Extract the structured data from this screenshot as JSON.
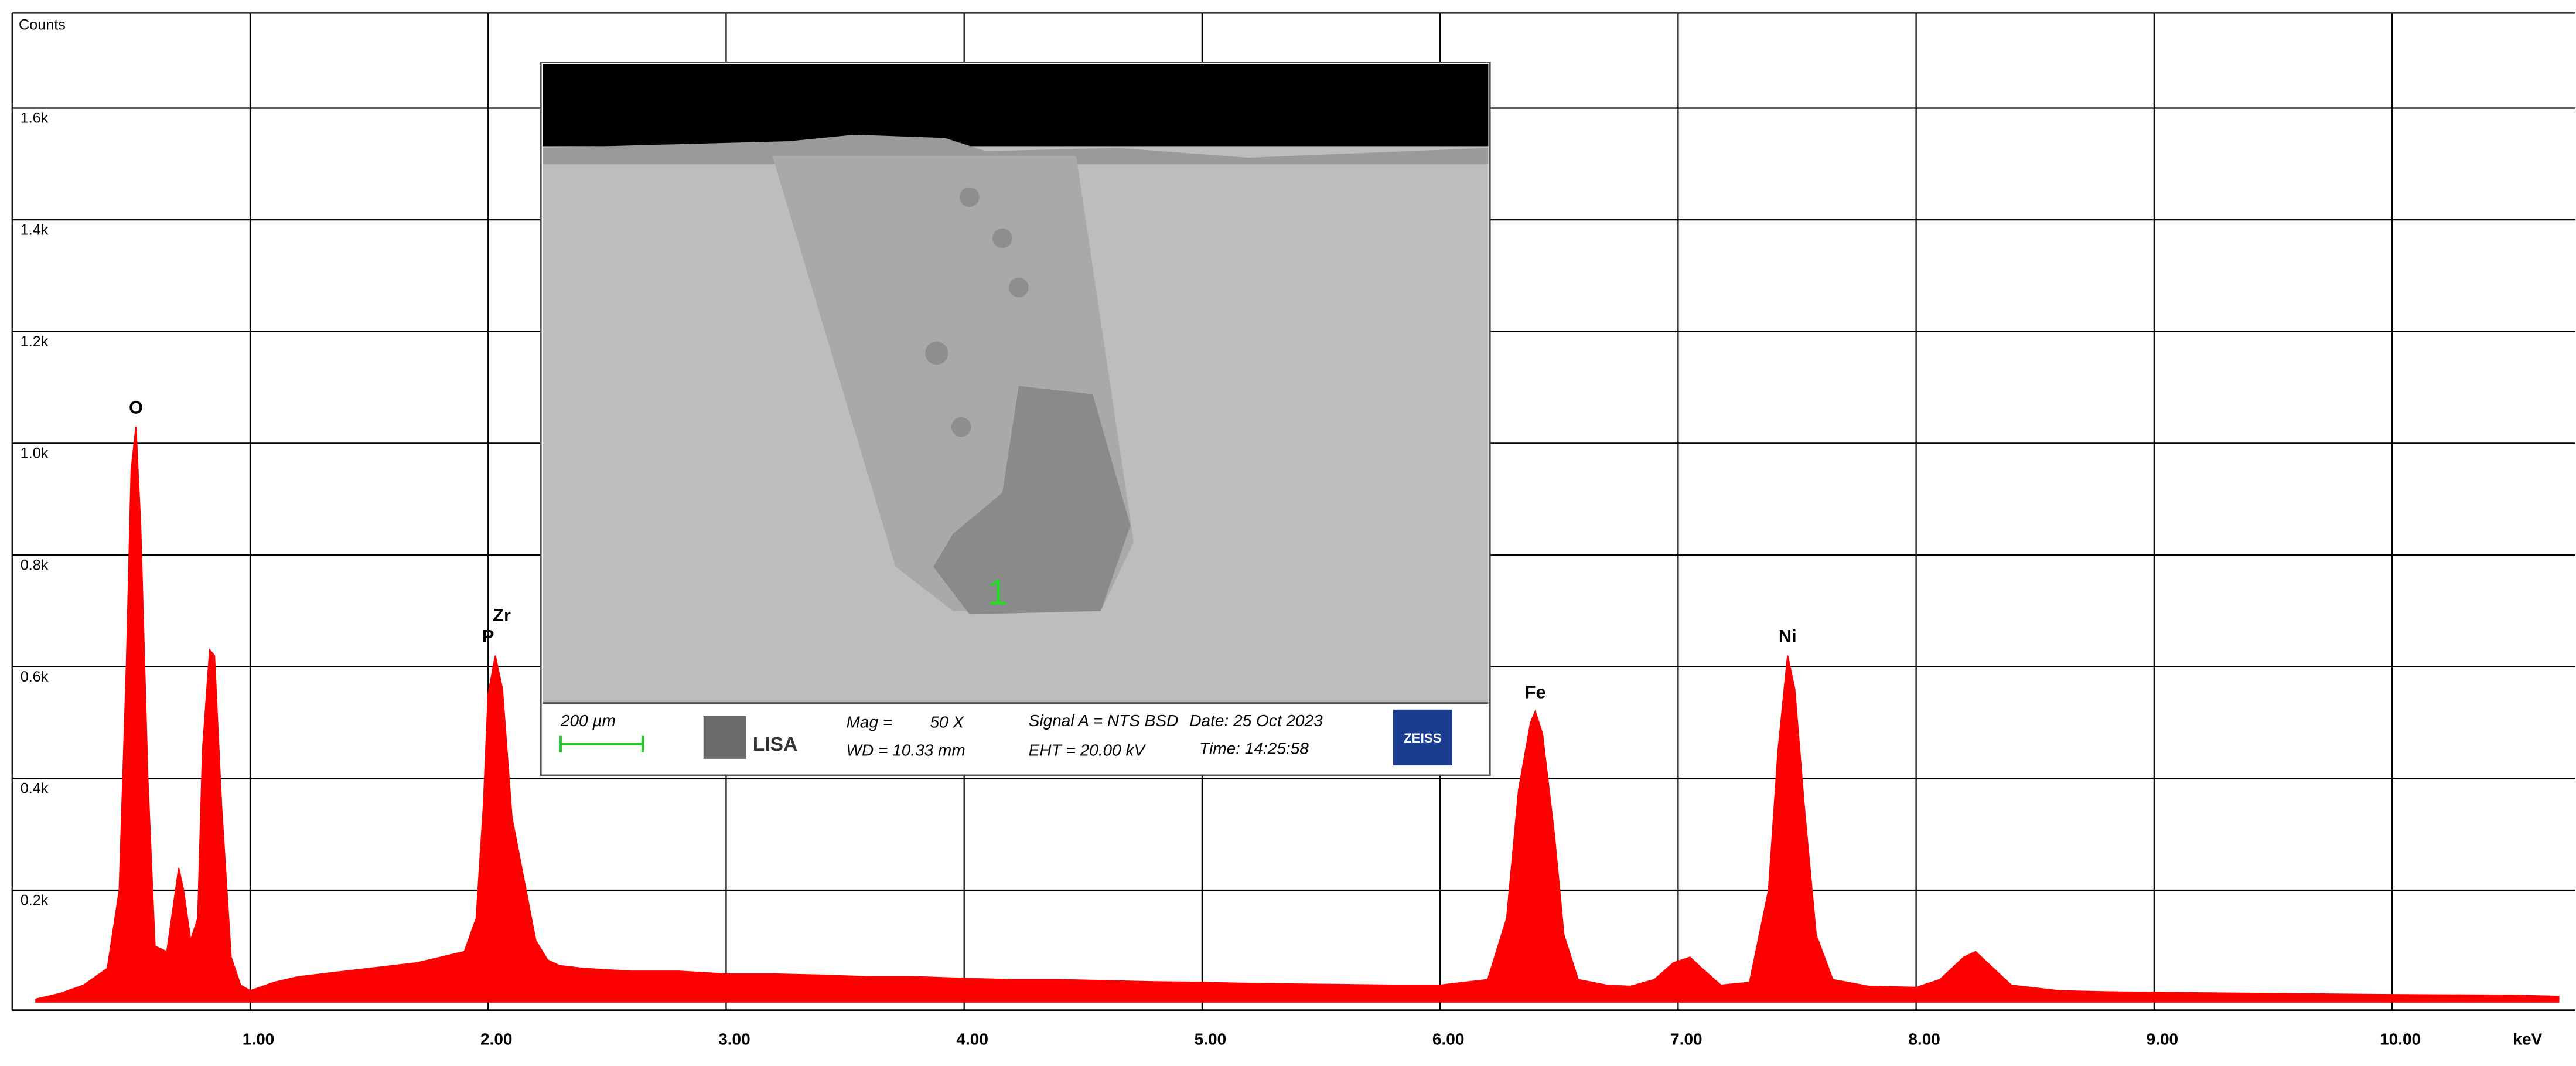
{
  "chart_data": {
    "type": "area",
    "y_label": "Counts",
    "x_label": "keV",
    "color": "#ff0000",
    "x": [
      0.1,
      0.2,
      0.3,
      0.4,
      0.45,
      0.48,
      0.5,
      0.52,
      0.54,
      0.57,
      0.6,
      0.65,
      0.68,
      0.7,
      0.72,
      0.75,
      0.78,
      0.8,
      0.83,
      0.85,
      0.88,
      0.92,
      0.96,
      1.0,
      1.1,
      1.2,
      1.3,
      1.4,
      1.5,
      1.6,
      1.7,
      1.8,
      1.9,
      1.95,
      1.98,
      2.0,
      2.03,
      2.06,
      2.1,
      2.15,
      2.2,
      2.25,
      2.3,
      2.4,
      2.6,
      2.8,
      3.0,
      3.2,
      3.4,
      3.6,
      3.8,
      4.0,
      4.2,
      4.4,
      4.6,
      4.8,
      5.0,
      5.2,
      5.4,
      5.6,
      5.8,
      6.0,
      6.2,
      6.28,
      6.33,
      6.38,
      6.4,
      6.43,
      6.48,
      6.52,
      6.58,
      6.7,
      6.8,
      6.9,
      6.98,
      7.05,
      7.1,
      7.18,
      7.3,
      7.38,
      7.42,
      7.46,
      7.49,
      7.53,
      7.58,
      7.65,
      7.8,
      8.0,
      8.1,
      8.2,
      8.25,
      8.3,
      8.4,
      8.6,
      8.8,
      9.0,
      9.5,
      10.0,
      10.5,
      10.7
    ],
    "values": [
      5,
      15,
      30,
      60,
      200,
      600,
      950,
      1030,
      850,
      400,
      100,
      90,
      180,
      240,
      200,
      110,
      150,
      450,
      630,
      620,
      350,
      80,
      30,
      20,
      35,
      45,
      50,
      55,
      60,
      65,
      70,
      80,
      90,
      150,
      350,
      550,
      620,
      560,
      330,
      220,
      110,
      75,
      65,
      60,
      55,
      55,
      50,
      50,
      48,
      45,
      45,
      42,
      40,
      40,
      38,
      36,
      35,
      33,
      32,
      31,
      30,
      30,
      40,
      150,
      380,
      500,
      520,
      480,
      300,
      120,
      40,
      30,
      28,
      40,
      70,
      80,
      60,
      30,
      35,
      200,
      450,
      620,
      560,
      350,
      120,
      40,
      28,
      26,
      40,
      80,
      90,
      70,
      30,
      20,
      18,
      17,
      15,
      13,
      12,
      10
    ],
    "xlim": [
      0,
      10.77
    ],
    "ylim": [
      0,
      1770
    ],
    "xticks": [
      {
        "value": 1,
        "label": "1.00"
      },
      {
        "value": 2,
        "label": "2.00"
      },
      {
        "value": 3,
        "label": "3.00"
      },
      {
        "value": 4,
        "label": "4.00"
      },
      {
        "value": 5,
        "label": "5.00"
      },
      {
        "value": 6,
        "label": "6.00"
      },
      {
        "value": 7,
        "label": "7.00"
      },
      {
        "value": 8,
        "label": "8.00"
      },
      {
        "value": 9,
        "label": "9.00"
      },
      {
        "value": 10,
        "label": "10.00"
      }
    ],
    "yticks": [
      {
        "value": 200,
        "label": "0.2k"
      },
      {
        "value": 400,
        "label": "0.4k"
      },
      {
        "value": 600,
        "label": "0.6k"
      },
      {
        "value": 800,
        "label": "0.8k"
      },
      {
        "value": 1000,
        "label": "1.0k"
      },
      {
        "value": 1200,
        "label": "1.2k"
      },
      {
        "value": 1400,
        "label": "1.4k"
      },
      {
        "value": 1600,
        "label": "1.6k"
      }
    ],
    "grid": true,
    "annotations": [
      {
        "text": "O",
        "x": 0.52
      },
      {
        "text": "P",
        "x": 2.0
      },
      {
        "text": "Zr",
        "x": 2.03
      },
      {
        "text": "Fe",
        "x": 6.4
      },
      {
        "text": "Ni",
        "x": 7.46
      }
    ]
  },
  "inset": {
    "scale": "200 µm",
    "mag_label": "Mag =",
    "mag": "50 X",
    "wd": "WD = 10.33 mm",
    "signal": "Signal A = NTS BSD",
    "date": "Date: 25 Oct 2023",
    "eht": "EHT = 20.00 kV",
    "time": "Time: 14:25:58",
    "brand": "ZEISS",
    "logo": "LISA",
    "point": "1"
  }
}
